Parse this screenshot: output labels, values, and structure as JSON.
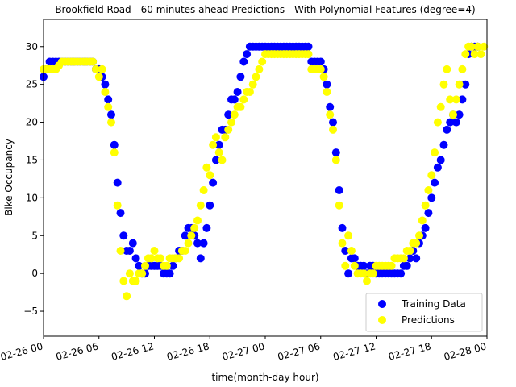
{
  "chart_data": {
    "type": "scatter",
    "title": "Brookfield Road - 60 minutes ahead Predictions - With Polynomial Features (degree=4)",
    "xlabel": "time(month-day hour)",
    "ylabel": "Bike Occupancy",
    "xlim": [
      "2021-02-26 00:00",
      "2021-02-28 00:00"
    ],
    "ylim": [
      -8.3,
      33.6
    ],
    "x_ticks": [
      "02-26 00",
      "02-26 06",
      "02-26 12",
      "02-26 18",
      "02-27 00",
      "02-27 06",
      "02-27 12",
      "02-27 18",
      "02-28 00"
    ],
    "y_ticks": [
      -5,
      0,
      5,
      10,
      15,
      20,
      25,
      30
    ],
    "grid": false,
    "legend_position": "lower-right",
    "series": [
      {
        "name": "Training Data",
        "color": "#0000ff",
        "points": [
          [
            "02-26 00:00",
            26
          ],
          [
            "02-26 00:20",
            27
          ],
          [
            "02-26 00:40",
            28
          ],
          [
            "02-26 01:00",
            28
          ],
          [
            "02-26 01:20",
            28
          ],
          [
            "02-26 01:40",
            28
          ],
          [
            "02-26 02:00",
            28
          ],
          [
            "02-26 02:20",
            28
          ],
          [
            "02-26 02:40",
            28
          ],
          [
            "02-26 03:00",
            28
          ],
          [
            "02-26 03:20",
            28
          ],
          [
            "02-26 03:40",
            28
          ],
          [
            "02-26 04:00",
            28
          ],
          [
            "02-26 04:20",
            28
          ],
          [
            "02-26 04:40",
            28
          ],
          [
            "02-26 05:00",
            28
          ],
          [
            "02-26 05:20",
            28
          ],
          [
            "02-26 05:40",
            27
          ],
          [
            "02-26 06:00",
            27
          ],
          [
            "02-26 06:20",
            26
          ],
          [
            "02-26 06:40",
            25
          ],
          [
            "02-26 07:00",
            23
          ],
          [
            "02-26 07:20",
            21
          ],
          [
            "02-26 07:40",
            17
          ],
          [
            "02-26 08:00",
            12
          ],
          [
            "02-26 08:20",
            8
          ],
          [
            "02-26 08:40",
            5
          ],
          [
            "02-26 09:00",
            3
          ],
          [
            "02-26 09:20",
            3
          ],
          [
            "02-26 09:40",
            4
          ],
          [
            "02-26 10:00",
            2
          ],
          [
            "02-26 10:20",
            1
          ],
          [
            "02-26 10:40",
            0
          ],
          [
            "02-26 11:00",
            0
          ],
          [
            "02-26 11:20",
            1
          ],
          [
            "02-26 11:40",
            1
          ],
          [
            "02-26 12:00",
            1
          ],
          [
            "02-26 12:20",
            1
          ],
          [
            "02-26 12:40",
            1
          ],
          [
            "02-26 13:00",
            0
          ],
          [
            "02-26 13:20",
            0
          ],
          [
            "02-26 13:40",
            0
          ],
          [
            "02-26 14:00",
            1
          ],
          [
            "02-26 14:20",
            2
          ],
          [
            "02-26 14:40",
            3
          ],
          [
            "02-26 15:00",
            3
          ],
          [
            "02-26 15:20",
            5
          ],
          [
            "02-26 15:40",
            6
          ],
          [
            "02-26 16:00",
            6
          ],
          [
            "02-26 16:20",
            5
          ],
          [
            "02-26 16:40",
            4
          ],
          [
            "02-26 17:00",
            2
          ],
          [
            "02-26 17:20",
            4
          ],
          [
            "02-26 17:40",
            6
          ],
          [
            "02-26 18:00",
            9
          ],
          [
            "02-26 18:20",
            12
          ],
          [
            "02-26 18:40",
            15
          ],
          [
            "02-26 19:00",
            17
          ],
          [
            "02-26 19:20",
            19
          ],
          [
            "02-26 19:40",
            19
          ],
          [
            "02-26 20:00",
            21
          ],
          [
            "02-26 20:20",
            23
          ],
          [
            "02-26 20:40",
            23
          ],
          [
            "02-26 21:00",
            24
          ],
          [
            "02-26 21:20",
            26
          ],
          [
            "02-26 21:40",
            28
          ],
          [
            "02-26 22:00",
            29
          ],
          [
            "02-26 22:20",
            30
          ],
          [
            "02-26 22:40",
            30
          ],
          [
            "02-26 23:00",
            30
          ],
          [
            "02-26 23:20",
            30
          ],
          [
            "02-26 23:40",
            30
          ],
          [
            "02-27 00:00",
            30
          ],
          [
            "02-27 00:20",
            30
          ],
          [
            "02-27 00:40",
            30
          ],
          [
            "02-27 01:00",
            30
          ],
          [
            "02-27 01:20",
            30
          ],
          [
            "02-27 01:40",
            30
          ],
          [
            "02-27 02:00",
            30
          ],
          [
            "02-27 02:20",
            30
          ],
          [
            "02-27 02:40",
            30
          ],
          [
            "02-27 03:00",
            30
          ],
          [
            "02-27 03:20",
            30
          ],
          [
            "02-27 03:40",
            30
          ],
          [
            "02-27 04:00",
            30
          ],
          [
            "02-27 04:20",
            30
          ],
          [
            "02-27 04:40",
            30
          ],
          [
            "02-27 05:00",
            28
          ],
          [
            "02-27 05:20",
            28
          ],
          [
            "02-27 05:40",
            28
          ],
          [
            "02-27 06:00",
            28
          ],
          [
            "02-27 06:20",
            27
          ],
          [
            "02-27 06:40",
            25
          ],
          [
            "02-27 07:00",
            22
          ],
          [
            "02-27 07:20",
            20
          ],
          [
            "02-27 07:40",
            16
          ],
          [
            "02-27 08:00",
            11
          ],
          [
            "02-27 08:20",
            6
          ],
          [
            "02-27 08:40",
            3
          ],
          [
            "02-27 09:00",
            0
          ],
          [
            "02-27 09:20",
            2
          ],
          [
            "02-27 09:40",
            2
          ],
          [
            "02-27 10:00",
            1
          ],
          [
            "02-27 10:20",
            1
          ],
          [
            "02-27 10:40",
            1
          ],
          [
            "02-27 11:00",
            0
          ],
          [
            "02-27 11:20",
            1
          ],
          [
            "02-27 11:40",
            1
          ],
          [
            "02-27 12:00",
            0
          ],
          [
            "02-27 12:20",
            0
          ],
          [
            "02-27 12:40",
            0
          ],
          [
            "02-27 13:00",
            0
          ],
          [
            "02-27 13:20",
            0
          ],
          [
            "02-27 13:40",
            0
          ],
          [
            "02-27 14:00",
            0
          ],
          [
            "02-27 14:20",
            0
          ],
          [
            "02-27 14:40",
            0
          ],
          [
            "02-27 15:00",
            1
          ],
          [
            "02-27 15:20",
            1
          ],
          [
            "02-27 15:40",
            2
          ],
          [
            "02-27 16:00",
            3
          ],
          [
            "02-27 16:20",
            2
          ],
          [
            "02-27 16:40",
            4
          ],
          [
            "02-27 17:00",
            5
          ],
          [
            "02-27 17:20",
            6
          ],
          [
            "02-27 17:40",
            8
          ],
          [
            "02-27 18:00",
            10
          ],
          [
            "02-27 18:20",
            12
          ],
          [
            "02-27 18:40",
            14
          ],
          [
            "02-27 19:00",
            15
          ],
          [
            "02-27 19:20",
            17
          ],
          [
            "02-27 19:40",
            19
          ],
          [
            "02-27 20:00",
            20
          ],
          [
            "02-27 20:20",
            21
          ],
          [
            "02-27 20:40",
            20
          ],
          [
            "02-27 21:00",
            21
          ],
          [
            "02-27 21:20",
            23
          ],
          [
            "02-27 21:40",
            25
          ],
          [
            "02-27 22:00",
            29
          ],
          [
            "02-27 22:20",
            30
          ],
          [
            "02-27 22:40",
            30
          ],
          [
            "02-27 23:00",
            30
          ]
        ]
      },
      {
        "name": "Predictions",
        "color": "#ffff00",
        "points": [
          [
            "02-26 00:00",
            27
          ],
          [
            "02-26 00:20",
            27
          ],
          [
            "02-26 00:40",
            27
          ],
          [
            "02-26 01:00",
            27
          ],
          [
            "02-26 01:20",
            27
          ],
          [
            "02-26 01:40",
            27.5
          ],
          [
            "02-26 02:00",
            28
          ],
          [
            "02-26 02:20",
            28
          ],
          [
            "02-26 02:40",
            28
          ],
          [
            "02-26 03:00",
            28
          ],
          [
            "02-26 03:20",
            28
          ],
          [
            "02-26 03:40",
            28
          ],
          [
            "02-26 04:00",
            28
          ],
          [
            "02-26 04:20",
            28
          ],
          [
            "02-26 04:40",
            28
          ],
          [
            "02-26 05:00",
            28
          ],
          [
            "02-26 05:20",
            28
          ],
          [
            "02-26 05:40",
            27
          ],
          [
            "02-26 06:00",
            26
          ],
          [
            "02-26 06:20",
            27
          ],
          [
            "02-26 06:40",
            24
          ],
          [
            "02-26 07:00",
            22
          ],
          [
            "02-26 07:20",
            20
          ],
          [
            "02-26 07:40",
            16
          ],
          [
            "02-26 08:00",
            9
          ],
          [
            "02-26 08:20",
            3
          ],
          [
            "02-26 08:40",
            -1
          ],
          [
            "02-26 09:00",
            -3
          ],
          [
            "02-26 09:20",
            0
          ],
          [
            "02-26 09:40",
            -1
          ],
          [
            "02-26 10:00",
            -1
          ],
          [
            "02-26 10:20",
            0
          ],
          [
            "02-26 10:40",
            0
          ],
          [
            "02-26 11:00",
            1
          ],
          [
            "02-26 11:20",
            2
          ],
          [
            "02-26 11:40",
            2
          ],
          [
            "02-26 12:00",
            3
          ],
          [
            "02-26 12:20",
            2
          ],
          [
            "02-26 12:40",
            2
          ],
          [
            "02-26 13:00",
            1
          ],
          [
            "02-26 13:20",
            1
          ],
          [
            "02-26 13:40",
            2
          ],
          [
            "02-26 14:00",
            2
          ],
          [
            "02-26 14:20",
            2
          ],
          [
            "02-26 14:40",
            2
          ],
          [
            "02-26 15:00",
            3
          ],
          [
            "02-26 15:20",
            3
          ],
          [
            "02-26 15:40",
            4
          ],
          [
            "02-26 16:00",
            5
          ],
          [
            "02-26 16:20",
            6
          ],
          [
            "02-26 16:40",
            7
          ],
          [
            "02-26 17:00",
            9
          ],
          [
            "02-26 17:20",
            11
          ],
          [
            "02-26 17:40",
            14
          ],
          [
            "02-26 18:00",
            13
          ],
          [
            "02-26 18:20",
            17
          ],
          [
            "02-26 18:40",
            18
          ],
          [
            "02-26 19:00",
            16
          ],
          [
            "02-26 19:20",
            15
          ],
          [
            "02-26 19:40",
            18
          ],
          [
            "02-26 20:00",
            19
          ],
          [
            "02-26 20:20",
            20
          ],
          [
            "02-26 20:40",
            21
          ],
          [
            "02-26 21:00",
            22
          ],
          [
            "02-26 21:20",
            22
          ],
          [
            "02-26 21:40",
            23
          ],
          [
            "02-26 22:00",
            24
          ],
          [
            "02-26 22:20",
            24
          ],
          [
            "02-26 22:40",
            25
          ],
          [
            "02-26 23:00",
            26
          ],
          [
            "02-26 23:20",
            27
          ],
          [
            "02-26 23:40",
            28
          ],
          [
            "02-27 00:00",
            29
          ],
          [
            "02-27 00:20",
            29
          ],
          [
            "02-27 00:40",
            29
          ],
          [
            "02-27 01:00",
            29
          ],
          [
            "02-27 01:20",
            29
          ],
          [
            "02-27 01:40",
            29
          ],
          [
            "02-27 02:00",
            29
          ],
          [
            "02-27 02:20",
            29
          ],
          [
            "02-27 02:40",
            29
          ],
          [
            "02-27 03:00",
            29
          ],
          [
            "02-27 03:20",
            29
          ],
          [
            "02-27 03:40",
            29
          ],
          [
            "02-27 04:00",
            29
          ],
          [
            "02-27 04:20",
            29
          ],
          [
            "02-27 04:40",
            29
          ],
          [
            "02-27 05:00",
            27
          ],
          [
            "02-27 05:20",
            27
          ],
          [
            "02-27 05:40",
            27
          ],
          [
            "02-27 06:00",
            27
          ],
          [
            "02-27 06:20",
            26
          ],
          [
            "02-27 06:40",
            24
          ],
          [
            "02-27 07:00",
            21
          ],
          [
            "02-27 07:20",
            19
          ],
          [
            "02-27 07:40",
            15
          ],
          [
            "02-27 08:00",
            9
          ],
          [
            "02-27 08:20",
            4
          ],
          [
            "02-27 08:40",
            1
          ],
          [
            "02-27 09:00",
            5
          ],
          [
            "02-27 09:20",
            3
          ],
          [
            "02-27 09:40",
            1
          ],
          [
            "02-27 10:00",
            0
          ],
          [
            "02-27 10:20",
            0
          ],
          [
            "02-27 10:40",
            0
          ],
          [
            "02-27 11:00",
            -1
          ],
          [
            "02-27 11:20",
            0
          ],
          [
            "02-27 11:40",
            0
          ],
          [
            "02-27 12:00",
            1
          ],
          [
            "02-27 12:20",
            1
          ],
          [
            "02-27 12:40",
            1
          ],
          [
            "02-27 13:00",
            1
          ],
          [
            "02-27 13:20",
            1
          ],
          [
            "02-27 13:40",
            1
          ],
          [
            "02-27 14:00",
            2
          ],
          [
            "02-27 14:20",
            2
          ],
          [
            "02-27 14:40",
            2
          ],
          [
            "02-27 15:00",
            2
          ],
          [
            "02-27 15:20",
            3
          ],
          [
            "02-27 15:40",
            3
          ],
          [
            "02-27 16:00",
            4
          ],
          [
            "02-27 16:20",
            4
          ],
          [
            "02-27 16:40",
            5
          ],
          [
            "02-27 17:00",
            7
          ],
          [
            "02-27 17:20",
            9
          ],
          [
            "02-27 17:40",
            11
          ],
          [
            "02-27 18:00",
            13
          ],
          [
            "02-27 18:20",
            16
          ],
          [
            "02-27 18:40",
            20
          ],
          [
            "02-27 19:00",
            22
          ],
          [
            "02-27 19:20",
            25
          ],
          [
            "02-27 19:40",
            27
          ],
          [
            "02-27 20:00",
            23
          ],
          [
            "02-27 20:20",
            21
          ],
          [
            "02-27 20:40",
            23
          ],
          [
            "02-27 21:00",
            25
          ],
          [
            "02-27 21:20",
            27
          ],
          [
            "02-27 21:40",
            29
          ],
          [
            "02-27 22:00",
            30
          ],
          [
            "02-27 22:20",
            30
          ],
          [
            "02-27 22:40",
            29
          ],
          [
            "02-27 23:00",
            30
          ],
          [
            "02-27 23:20",
            29
          ],
          [
            "02-27 23:40",
            30
          ]
        ]
      }
    ]
  }
}
